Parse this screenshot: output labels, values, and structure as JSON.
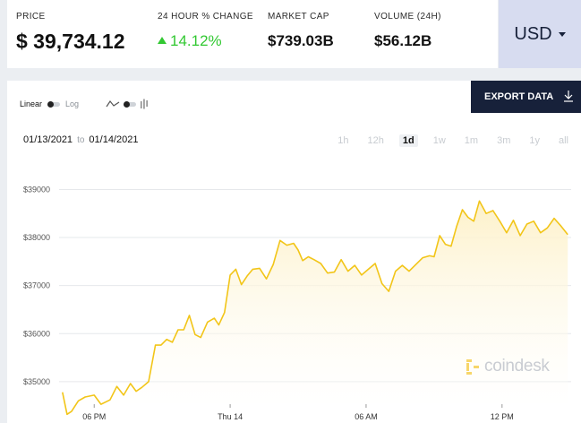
{
  "stats": {
    "price": {
      "label": "PRICE",
      "value": "$ 39,734.12"
    },
    "change": {
      "label": "24 HOUR % CHANGE",
      "value": "14.12%"
    },
    "market_cap": {
      "label": "MARKET CAP",
      "value": "$739.03B"
    },
    "volume": {
      "label": "VOLUME (24H)",
      "value": "$56.12B"
    }
  },
  "currency": {
    "label": "USD"
  },
  "toggles": {
    "linear": "Linear",
    "log": "Log"
  },
  "export": {
    "label": "EXPORT DATA"
  },
  "date_range": {
    "start": "01/13/2021",
    "to": "to",
    "end": "01/14/2021"
  },
  "ranges": [
    "1h",
    "12h",
    "1d",
    "1w",
    "1m",
    "3m",
    "1y",
    "all"
  ],
  "active_range": "1d",
  "watermark": "coindesk",
  "colors": {
    "line": "#f2c518",
    "fill_top": "#fdf1c9",
    "dark": "#17213a",
    "up": "#32c832",
    "accent_bg": "#d7dcf0"
  },
  "chart_data": {
    "type": "area",
    "y_ticks": [
      "$35000",
      "$36000",
      "$37000",
      "$38000",
      "$39000"
    ],
    "y_tick_values": [
      35000,
      36000,
      37000,
      38000,
      39000
    ],
    "x_ticks": [
      "06 PM",
      "Thu 14",
      "06 AM",
      "12 PM"
    ],
    "x_tick_hours": [
      0,
      6,
      12,
      18
    ],
    "ylim": [
      34550,
      39400
    ],
    "xlim": [
      -1.55,
      21.05
    ],
    "grid": "horizontal",
    "x_hours": [
      -1.4,
      -1.2,
      -1,
      -0.7,
      -0.4,
      0,
      0.3,
      0.7,
      1,
      1.3,
      1.6,
      1.85,
      2.1,
      2.4,
      2.7,
      2.95,
      3.2,
      3.45,
      3.7,
      3.95,
      4.2,
      4.45,
      4.7,
      5,
      5.3,
      5.5,
      5.75,
      6,
      6.25,
      6.5,
      6.75,
      7,
      7.3,
      7.6,
      7.9,
      8.2,
      8.5,
      8.8,
      9,
      9.2,
      9.45,
      9.7,
      10,
      10.3,
      10.6,
      10.9,
      11.2,
      11.5,
      11.8,
      12.1,
      12.4,
      12.7,
      13,
      13.3,
      13.6,
      13.9,
      14.2,
      14.5,
      14.8,
      15,
      15.25,
      15.5,
      15.75,
      16,
      16.25,
      16.5,
      16.75,
      17,
      17.3,
      17.6,
      17.9,
      18.2,
      18.5,
      18.8,
      19.1,
      19.4,
      19.7,
      20,
      20.3,
      20.6,
      20.9
    ],
    "values": [
      34780,
      34320,
      34380,
      34600,
      34680,
      34720,
      34530,
      34620,
      34900,
      34720,
      34960,
      34800,
      34880,
      35000,
      35760,
      35760,
      35880,
      35820,
      36080,
      36080,
      36380,
      35980,
      35920,
      36240,
      36320,
      36180,
      36440,
      37220,
      37340,
      37020,
      37200,
      37340,
      37360,
      37140,
      37440,
      37940,
      37840,
      37880,
      37740,
      37520,
      37600,
      37540,
      37460,
      37260,
      37280,
      37540,
      37300,
      37420,
      37220,
      37340,
      37460,
      37040,
      36880,
      37300,
      37420,
      37300,
      37440,
      37580,
      37620,
      37600,
      38040,
      37860,
      37820,
      38240,
      38580,
      38420,
      38340,
      38760,
      38500,
      38560,
      38340,
      38100,
      38360,
      38040,
      38280,
      38340,
      38100,
      38200,
      38400,
      38240,
      38060
    ]
  }
}
